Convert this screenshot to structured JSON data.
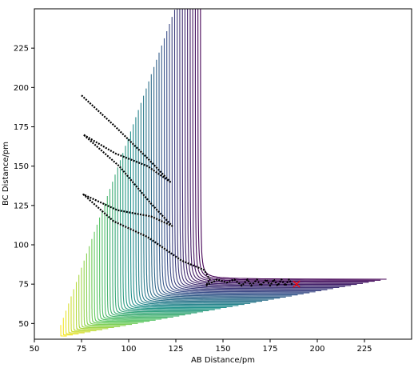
{
  "chart_data": {
    "type": "contour",
    "title": "",
    "xlabel": "AB Distance/pm",
    "ylabel": "BC Distance/pm",
    "xlim": [
      50,
      250
    ],
    "ylim": [
      40,
      250
    ],
    "xticks": [
      50,
      75,
      100,
      125,
      150,
      175,
      200,
      225
    ],
    "yticks": [
      50,
      75,
      100,
      125,
      150,
      175,
      200,
      225
    ],
    "grid": false,
    "colormap": [
      "#440154",
      "#3b528b",
      "#21918c",
      "#5ec962",
      "#fde725"
    ],
    "contour_count": 55,
    "trajectory": {
      "color": "#000000",
      "x": [
        75,
        93,
        110,
        122,
        110,
        93,
        76,
        95,
        112,
        123,
        112,
        94,
        76,
        92,
        110,
        128,
        140,
        143,
        141,
        147,
        152,
        156,
        160,
        163,
        165,
        168,
        170,
        173,
        175,
        177,
        179,
        181,
        183,
        185,
        187
      ],
      "y": [
        195,
        175,
        155,
        140,
        150,
        158,
        170,
        150,
        126,
        112,
        118,
        122,
        132,
        115,
        105,
        90,
        84,
        78,
        74,
        78,
        76,
        78,
        74,
        78,
        74,
        78,
        74,
        78,
        74,
        78,
        74,
        78,
        74,
        78,
        74
      ]
    },
    "end_marker": {
      "x": 189,
      "y": 75,
      "symbol": "x",
      "color": "#ff0000"
    }
  }
}
